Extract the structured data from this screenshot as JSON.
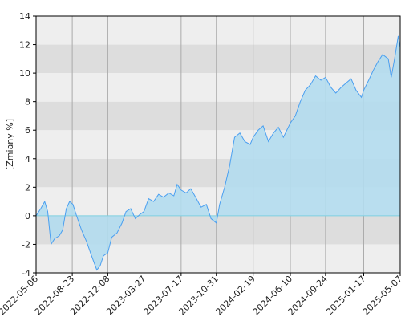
{
  "chart_data": {
    "type": "area",
    "y_label": "[Zmiany %]",
    "x": [
      "2022-05-06",
      "2022-05-20",
      "2022-06-01",
      "2022-06-10",
      "2022-06-20",
      "2022-07-01",
      "2022-07-15",
      "2022-07-25",
      "2022-08-05",
      "2022-08-15",
      "2022-08-25",
      "2022-09-05",
      "2022-09-20",
      "2022-10-05",
      "2022-10-20",
      "2022-11-05",
      "2022-11-15",
      "2022-11-25",
      "2022-12-08",
      "2022-12-20",
      "2023-01-05",
      "2023-01-20",
      "2023-02-01",
      "2023-02-15",
      "2023-03-01",
      "2023-03-15",
      "2023-03-27",
      "2023-04-10",
      "2023-04-25",
      "2023-05-10",
      "2023-05-25",
      "2023-06-10",
      "2023-06-25",
      "2023-07-05",
      "2023-07-17",
      "2023-08-01",
      "2023-08-15",
      "2023-09-01",
      "2023-09-15",
      "2023-10-01",
      "2023-10-15",
      "2023-10-31",
      "2023-11-10",
      "2023-11-25",
      "2023-12-10",
      "2023-12-25",
      "2024-01-10",
      "2024-01-25",
      "2024-02-10",
      "2024-02-19",
      "2024-03-05",
      "2024-03-20",
      "2024-04-05",
      "2024-04-20",
      "2024-05-05",
      "2024-05-20",
      "2024-06-10",
      "2024-06-25",
      "2024-07-10",
      "2024-07-25",
      "2024-08-10",
      "2024-08-25",
      "2024-09-10",
      "2024-09-24",
      "2024-10-10",
      "2024-10-25",
      "2024-11-10",
      "2024-11-25",
      "2024-12-10",
      "2024-12-25",
      "2025-01-10",
      "2025-01-17",
      "2025-02-01",
      "2025-02-15",
      "2025-03-01",
      "2025-03-15",
      "2025-04-01",
      "2025-04-10",
      "2025-04-20",
      "2025-05-01",
      "2025-05-07"
    ],
    "values": [
      0,
      0.5,
      1.0,
      0.3,
      -2.0,
      -1.6,
      -1.4,
      -1.0,
      0.5,
      1.0,
      0.8,
      0,
      -1.0,
      -1.8,
      -2.8,
      -3.8,
      -3.5,
      -2.8,
      -2.6,
      -1.5,
      -1.2,
      -0.5,
      0.3,
      0.5,
      -0.2,
      0.1,
      0.3,
      1.2,
      1.0,
      1.5,
      1.3,
      1.6,
      1.4,
      2.2,
      1.8,
      1.6,
      1.9,
      1.2,
      0.6,
      0.8,
      -0.2,
      -0.5,
      0.8,
      2.0,
      3.5,
      5.5,
      5.8,
      5.2,
      5.0,
      5.5,
      6.0,
      6.3,
      5.2,
      5.8,
      6.2,
      5.5,
      6.5,
      7.0,
      8.0,
      8.8,
      9.2,
      9.8,
      9.5,
      9.7,
      9.0,
      8.6,
      9.0,
      9.3,
      9.6,
      8.8,
      8.3,
      8.8,
      9.5,
      10.2,
      10.8,
      11.3,
      11.0,
      9.7,
      11.0,
      12.6,
      11.8
    ],
    "line_color": "#4a9ff0",
    "fill_color": "#b3dcee",
    "xlim": [
      "2022-05-06",
      "2025-05-07"
    ],
    "xticks": [
      "2022-05-06",
      "2022-08-23",
      "2022-12-08",
      "2023-03-27",
      "2023-07-17",
      "2023-10-31",
      "2024-02-19",
      "2024-06-10",
      "2024-09-24",
      "2025-01-17",
      "2025-05-07"
    ],
    "ylim": [
      -4,
      14
    ],
    "yticks": [
      -4,
      -2,
      0,
      2,
      4,
      6,
      8,
      10,
      12,
      14
    ],
    "grid": true
  }
}
